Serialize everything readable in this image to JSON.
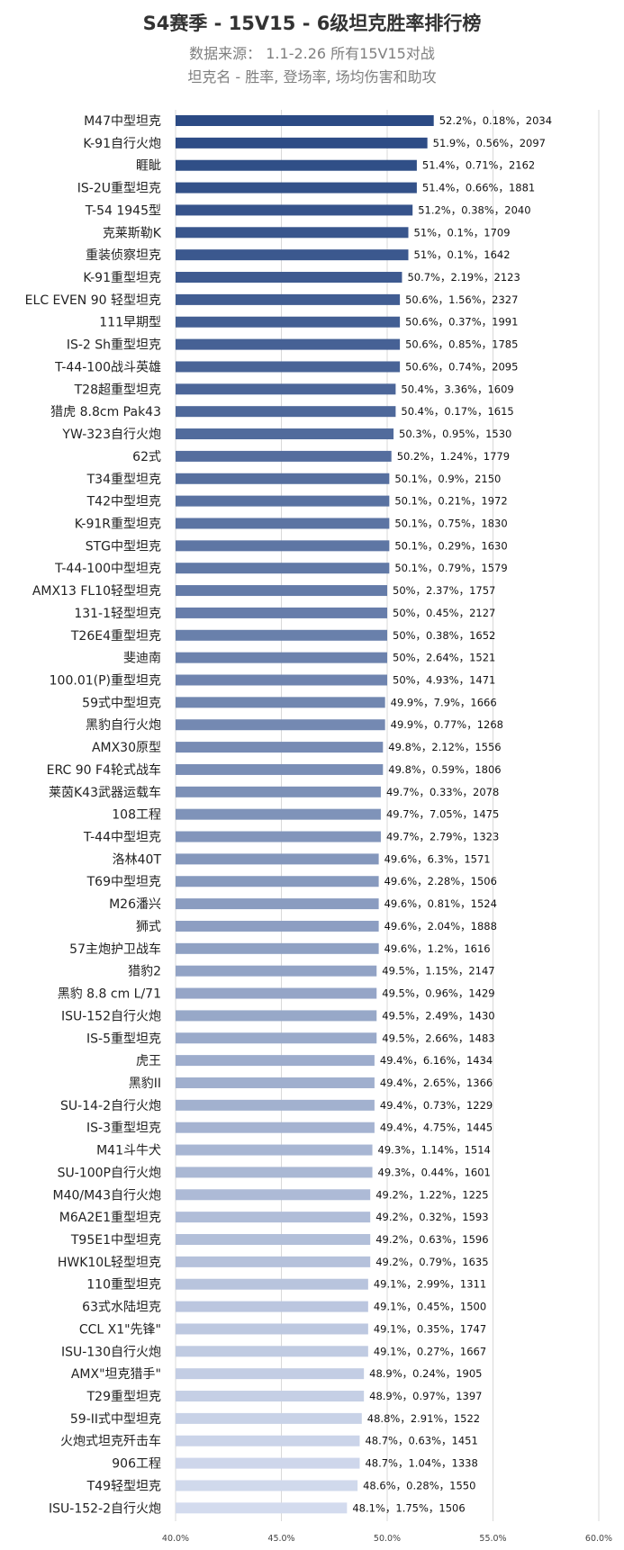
{
  "header": {
    "title": "S4赛季 - 15V15 - 6级坦克胜率排行榜",
    "subtitle1": "数据来源：  1.1-2.26 所有15V15对战",
    "subtitle2": "坦克名 - 胜率, 登场率, 场均伤害和助攻"
  },
  "colors": {
    "bar_top": "#2b4a84",
    "bar_bottom": "#d3dbee",
    "grid": "#d9d9d9"
  },
  "chart_data": {
    "type": "bar",
    "orientation": "horizontal",
    "xlim": [
      40,
      60
    ],
    "x_ticks": [
      "40.0%",
      "45.0%",
      "50.0%",
      "55.0%",
      "60.0%"
    ],
    "grid": true,
    "categories": [
      "M47中型坦克",
      "K-91自行火炮",
      "睚眦",
      "IS-2U重型坦克",
      "T-54 1945型",
      "克莱斯勒K",
      "重装侦察坦克",
      "K-91重型坦克",
      "ELC EVEN 90 轻型坦克",
      "111早期型",
      "IS-2 Sh重型坦克",
      "T-44-100战斗英雄",
      "T28超重型坦克",
      "猎虎 8.8cm Pak43",
      "YW-323自行火炮",
      "62式",
      "T34重型坦克",
      "T42中型坦克",
      "K-91R重型坦克",
      "STG中型坦克",
      "T-44-100中型坦克",
      "AMX13 FL10轻型坦克",
      "131-1轻型坦克",
      "T26E4重型坦克",
      "斐迪南",
      "100.01(P)重型坦克",
      "59式中型坦克",
      "黑豹自行火炮",
      "AMX30原型",
      "ERC 90 F4轮式战车",
      "莱茵K43武器运载车",
      "108工程",
      "T-44中型坦克",
      "洛林40T",
      "T69中型坦克",
      "M26潘兴",
      "狮式",
      "57主炮护卫战车",
      "猎豹2",
      "黑豹 8.8 cm L/71",
      "ISU-152自行火炮",
      "IS-5重型坦克",
      "虎王",
      "黑豹II",
      "SU-14-2自行火炮",
      "IS-3重型坦克",
      "M41斗牛犬",
      "SU-100P自行火炮",
      "M40/M43自行火炮",
      "M6A2E1重型坦克",
      "T95E1中型坦克",
      "HWK10L轻型坦克",
      "110重型坦克",
      "63式水陆坦克",
      "CCL X1\"先锋\"",
      "ISU-130自行火炮",
      "AMX\"坦克猎手\"",
      "T29重型坦克",
      "59-II式中型坦克",
      "火炮式坦克歼击车",
      "906工程",
      "T49轻型坦克",
      "ISU-152-2自行火炮"
    ],
    "values": [
      52.2,
      51.9,
      51.4,
      51.4,
      51.2,
      51,
      51,
      50.7,
      50.6,
      50.6,
      50.6,
      50.6,
      50.4,
      50.4,
      50.3,
      50.2,
      50.1,
      50.1,
      50.1,
      50.1,
      50.1,
      50,
      50,
      50,
      50,
      50,
      49.9,
      49.9,
      49.8,
      49.8,
      49.7,
      49.7,
      49.7,
      49.6,
      49.6,
      49.6,
      49.6,
      49.6,
      49.5,
      49.5,
      49.5,
      49.5,
      49.4,
      49.4,
      49.4,
      49.4,
      49.3,
      49.3,
      49.2,
      49.2,
      49.2,
      49.2,
      49.1,
      49.1,
      49.1,
      49.1,
      48.9,
      48.9,
      48.8,
      48.7,
      48.7,
      48.6,
      48.1
    ],
    "data_labels": [
      "52.2%，0.18%，2034",
      "51.9%，0.56%，2097",
      "51.4%，0.71%，2162",
      "51.4%，0.66%，1881",
      "51.2%，0.38%，2040",
      "51%，0.1%，1709",
      "51%，0.1%，1642",
      "50.7%，2.19%，2123",
      "50.6%，1.56%，2327",
      "50.6%，0.37%，1991",
      "50.6%，0.85%，1785",
      "50.6%，0.74%，2095",
      "50.4%，3.36%，1609",
      "50.4%，0.17%，1615",
      "50.3%，0.95%，1530",
      "50.2%，1.24%，1779",
      "50.1%，0.9%，2150",
      "50.1%，0.21%，1972",
      "50.1%，0.75%，1830",
      "50.1%，0.29%，1630",
      "50.1%，0.79%，1579",
      "50%，2.37%，1757",
      "50%，0.45%，2127",
      "50%，0.38%，1652",
      "50%，2.64%，1521",
      "50%，4.93%，1471",
      "49.9%，7.9%，1666",
      "49.9%，0.77%，1268",
      "49.8%，2.12%，1556",
      "49.8%，0.59%，1806",
      "49.7%，0.33%，2078",
      "49.7%，7.05%，1475",
      "49.7%，2.79%，1323",
      "49.6%，6.3%，1571",
      "49.6%，2.28%，1506",
      "49.6%，0.81%，1524",
      "49.6%，2.04%，1888",
      "49.6%，1.2%，1616",
      "49.5%，1.15%，2147",
      "49.5%，0.96%，1429",
      "49.5%，2.49%，1430",
      "49.5%，2.66%，1483",
      "49.4%，6.16%，1434",
      "49.4%，2.65%，1366",
      "49.4%，0.73%，1229",
      "49.4%，4.75%，1445",
      "49.3%，1.14%，1514",
      "49.3%，0.44%，1601",
      "49.2%，1.22%，1225",
      "49.2%，0.32%，1593",
      "49.2%，0.63%，1596",
      "49.2%，0.79%，1635",
      "49.1%，2.99%，1311",
      "49.1%，0.45%，1500",
      "49.1%，0.35%，1747",
      "49.1%，0.27%，1667",
      "48.9%，0.24%，1905",
      "48.9%，0.97%，1397",
      "48.8%，2.91%，1522",
      "48.7%，0.63%，1451",
      "48.7%，1.04%，1338",
      "48.6%，0.28%，1550",
      "48.1%，1.75%，1506"
    ]
  }
}
